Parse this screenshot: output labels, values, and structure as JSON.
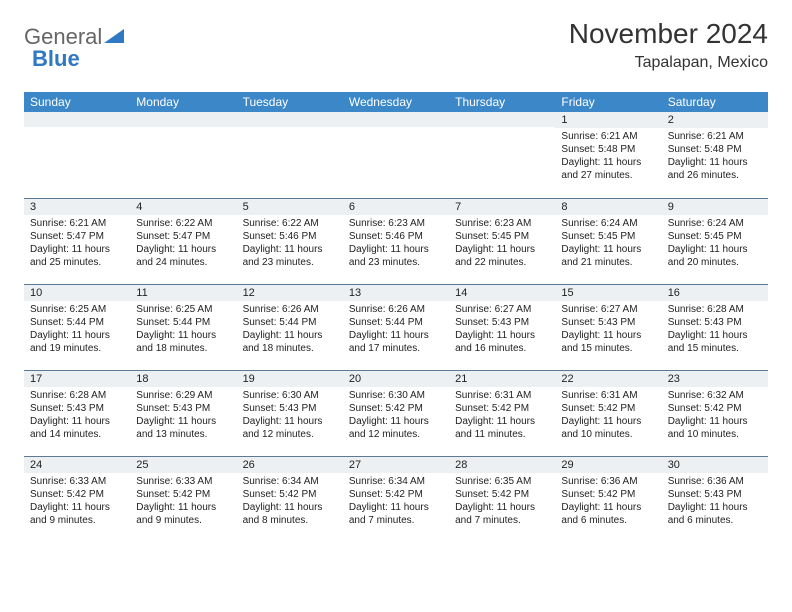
{
  "logo": {
    "part1": "General",
    "part2": "Blue"
  },
  "title": "November 2024",
  "location": "Tapalapan, Mexico",
  "colors": {
    "header_bg": "#3b87c8",
    "header_text": "#ffffff",
    "daynum_bg": "#edf0f2",
    "border": "#5a7a95",
    "logo_blue": "#2f79c2",
    "text": "#222222"
  },
  "day_labels": [
    "Sunday",
    "Monday",
    "Tuesday",
    "Wednesday",
    "Thursday",
    "Friday",
    "Saturday"
  ],
  "weeks": [
    [
      {
        "n": "",
        "sunrise": "",
        "sunset": "",
        "daylight": ""
      },
      {
        "n": "",
        "sunrise": "",
        "sunset": "",
        "daylight": ""
      },
      {
        "n": "",
        "sunrise": "",
        "sunset": "",
        "daylight": ""
      },
      {
        "n": "",
        "sunrise": "",
        "sunset": "",
        "daylight": ""
      },
      {
        "n": "",
        "sunrise": "",
        "sunset": "",
        "daylight": ""
      },
      {
        "n": "1",
        "sunrise": "Sunrise: 6:21 AM",
        "sunset": "Sunset: 5:48 PM",
        "daylight": "Daylight: 11 hours and 27 minutes."
      },
      {
        "n": "2",
        "sunrise": "Sunrise: 6:21 AM",
        "sunset": "Sunset: 5:48 PM",
        "daylight": "Daylight: 11 hours and 26 minutes."
      }
    ],
    [
      {
        "n": "3",
        "sunrise": "Sunrise: 6:21 AM",
        "sunset": "Sunset: 5:47 PM",
        "daylight": "Daylight: 11 hours and 25 minutes."
      },
      {
        "n": "4",
        "sunrise": "Sunrise: 6:22 AM",
        "sunset": "Sunset: 5:47 PM",
        "daylight": "Daylight: 11 hours and 24 minutes."
      },
      {
        "n": "5",
        "sunrise": "Sunrise: 6:22 AM",
        "sunset": "Sunset: 5:46 PM",
        "daylight": "Daylight: 11 hours and 23 minutes."
      },
      {
        "n": "6",
        "sunrise": "Sunrise: 6:23 AM",
        "sunset": "Sunset: 5:46 PM",
        "daylight": "Daylight: 11 hours and 23 minutes."
      },
      {
        "n": "7",
        "sunrise": "Sunrise: 6:23 AM",
        "sunset": "Sunset: 5:45 PM",
        "daylight": "Daylight: 11 hours and 22 minutes."
      },
      {
        "n": "8",
        "sunrise": "Sunrise: 6:24 AM",
        "sunset": "Sunset: 5:45 PM",
        "daylight": "Daylight: 11 hours and 21 minutes."
      },
      {
        "n": "9",
        "sunrise": "Sunrise: 6:24 AM",
        "sunset": "Sunset: 5:45 PM",
        "daylight": "Daylight: 11 hours and 20 minutes."
      }
    ],
    [
      {
        "n": "10",
        "sunrise": "Sunrise: 6:25 AM",
        "sunset": "Sunset: 5:44 PM",
        "daylight": "Daylight: 11 hours and 19 minutes."
      },
      {
        "n": "11",
        "sunrise": "Sunrise: 6:25 AM",
        "sunset": "Sunset: 5:44 PM",
        "daylight": "Daylight: 11 hours and 18 minutes."
      },
      {
        "n": "12",
        "sunrise": "Sunrise: 6:26 AM",
        "sunset": "Sunset: 5:44 PM",
        "daylight": "Daylight: 11 hours and 18 minutes."
      },
      {
        "n": "13",
        "sunrise": "Sunrise: 6:26 AM",
        "sunset": "Sunset: 5:44 PM",
        "daylight": "Daylight: 11 hours and 17 minutes."
      },
      {
        "n": "14",
        "sunrise": "Sunrise: 6:27 AM",
        "sunset": "Sunset: 5:43 PM",
        "daylight": "Daylight: 11 hours and 16 minutes."
      },
      {
        "n": "15",
        "sunrise": "Sunrise: 6:27 AM",
        "sunset": "Sunset: 5:43 PM",
        "daylight": "Daylight: 11 hours and 15 minutes."
      },
      {
        "n": "16",
        "sunrise": "Sunrise: 6:28 AM",
        "sunset": "Sunset: 5:43 PM",
        "daylight": "Daylight: 11 hours and 15 minutes."
      }
    ],
    [
      {
        "n": "17",
        "sunrise": "Sunrise: 6:28 AM",
        "sunset": "Sunset: 5:43 PM",
        "daylight": "Daylight: 11 hours and 14 minutes."
      },
      {
        "n": "18",
        "sunrise": "Sunrise: 6:29 AM",
        "sunset": "Sunset: 5:43 PM",
        "daylight": "Daylight: 11 hours and 13 minutes."
      },
      {
        "n": "19",
        "sunrise": "Sunrise: 6:30 AM",
        "sunset": "Sunset: 5:43 PM",
        "daylight": "Daylight: 11 hours and 12 minutes."
      },
      {
        "n": "20",
        "sunrise": "Sunrise: 6:30 AM",
        "sunset": "Sunset: 5:42 PM",
        "daylight": "Daylight: 11 hours and 12 minutes."
      },
      {
        "n": "21",
        "sunrise": "Sunrise: 6:31 AM",
        "sunset": "Sunset: 5:42 PM",
        "daylight": "Daylight: 11 hours and 11 minutes."
      },
      {
        "n": "22",
        "sunrise": "Sunrise: 6:31 AM",
        "sunset": "Sunset: 5:42 PM",
        "daylight": "Daylight: 11 hours and 10 minutes."
      },
      {
        "n": "23",
        "sunrise": "Sunrise: 6:32 AM",
        "sunset": "Sunset: 5:42 PM",
        "daylight": "Daylight: 11 hours and 10 minutes."
      }
    ],
    [
      {
        "n": "24",
        "sunrise": "Sunrise: 6:33 AM",
        "sunset": "Sunset: 5:42 PM",
        "daylight": "Daylight: 11 hours and 9 minutes."
      },
      {
        "n": "25",
        "sunrise": "Sunrise: 6:33 AM",
        "sunset": "Sunset: 5:42 PM",
        "daylight": "Daylight: 11 hours and 9 minutes."
      },
      {
        "n": "26",
        "sunrise": "Sunrise: 6:34 AM",
        "sunset": "Sunset: 5:42 PM",
        "daylight": "Daylight: 11 hours and 8 minutes."
      },
      {
        "n": "27",
        "sunrise": "Sunrise: 6:34 AM",
        "sunset": "Sunset: 5:42 PM",
        "daylight": "Daylight: 11 hours and 7 minutes."
      },
      {
        "n": "28",
        "sunrise": "Sunrise: 6:35 AM",
        "sunset": "Sunset: 5:42 PM",
        "daylight": "Daylight: 11 hours and 7 minutes."
      },
      {
        "n": "29",
        "sunrise": "Sunrise: 6:36 AM",
        "sunset": "Sunset: 5:42 PM",
        "daylight": "Daylight: 11 hours and 6 minutes."
      },
      {
        "n": "30",
        "sunrise": "Sunrise: 6:36 AM",
        "sunset": "Sunset: 5:43 PM",
        "daylight": "Daylight: 11 hours and 6 minutes."
      }
    ]
  ]
}
